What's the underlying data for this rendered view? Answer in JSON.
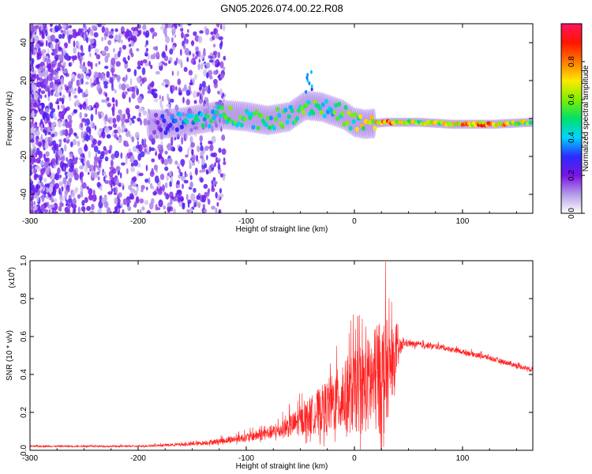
{
  "figure": {
    "title": "GN05.2026.074.00.22.R08"
  },
  "chart_data": [
    {
      "type": "heatmap",
      "name": "spectrogram",
      "xlabel": "Height of straight line (km)",
      "ylabel": "Frequency (Hz)",
      "xlim": [
        -300,
        165
      ],
      "ylim": [
        -50,
        50
      ],
      "xticks": [
        -300,
        -200,
        -100,
        0,
        100
      ],
      "yticks": [
        -40,
        -20,
        0,
        20,
        40
      ],
      "colorbar": {
        "label": "Normalized spectral amplitude",
        "range": [
          0,
          1
        ],
        "ticks": [
          "0.0",
          "0.2",
          "0.4",
          "0.6",
          "0.8"
        ],
        "colors": [
          "#ffffff",
          "#b49be8",
          "#7a14e6",
          "#2a2bff",
          "#00d4ff",
          "#00e06a",
          "#7ff000",
          "#ffe800",
          "#ff7a00",
          "#ff1400",
          "#ff1460"
        ]
      },
      "ridge": [
        {
          "x": -180,
          "f": -3,
          "a": 0.35
        },
        {
          "x": -160,
          "f": -2,
          "a": 0.45
        },
        {
          "x": -140,
          "f": 0,
          "a": 0.55
        },
        {
          "x": -120,
          "f": 2,
          "a": 0.6
        },
        {
          "x": -100,
          "f": 1,
          "a": 0.62
        },
        {
          "x": -80,
          "f": -1,
          "a": 0.6
        },
        {
          "x": -60,
          "f": 1,
          "a": 0.62
        },
        {
          "x": -45,
          "f": 7,
          "a": 0.65
        },
        {
          "x": -30,
          "f": 6,
          "a": 0.6
        },
        {
          "x": -10,
          "f": 2,
          "a": 0.6
        },
        {
          "x": 0,
          "f": -2,
          "a": 0.7
        },
        {
          "x": 10,
          "f": -3,
          "a": 0.8
        },
        {
          "x": 30,
          "f": -2,
          "a": 0.95
        },
        {
          "x": 60,
          "f": -2,
          "a": 0.7
        },
        {
          "x": 90,
          "f": -3,
          "a": 0.9
        },
        {
          "x": 130,
          "f": -3,
          "a": 0.95
        },
        {
          "x": 165,
          "f": -2,
          "a": 0.7
        }
      ]
    },
    {
      "type": "line",
      "name": "snr",
      "xlabel": "Height of straight line (km)",
      "ylabel": "SNR (10 * v/v)",
      "multiplier": "(x10",
      "multiplier_exp": "4",
      "xlim": [
        -300,
        165
      ],
      "ylim": [
        0,
        1.0
      ],
      "xticks": [
        -300,
        -200,
        -100,
        0,
        100
      ],
      "yticks": [
        "0.0",
        "0.2",
        "0.4",
        "0.6",
        "0.8",
        "1.0"
      ],
      "color": "#ff2020",
      "envelope": [
        {
          "x": -300,
          "base": 0.02,
          "amp": 0.01
        },
        {
          "x": -200,
          "base": 0.02,
          "amp": 0.01
        },
        {
          "x": -150,
          "base": 0.03,
          "amp": 0.02
        },
        {
          "x": -130,
          "base": 0.04,
          "amp": 0.03
        },
        {
          "x": -100,
          "base": 0.06,
          "amp": 0.05
        },
        {
          "x": -70,
          "base": 0.09,
          "amp": 0.09
        },
        {
          "x": -50,
          "base": 0.13,
          "amp": 0.17
        },
        {
          "x": -30,
          "base": 0.18,
          "amp": 0.28
        },
        {
          "x": -10,
          "base": 0.22,
          "amp": 0.42
        },
        {
          "x": 10,
          "base": 0.26,
          "amp": 0.55
        },
        {
          "x": 28,
          "base": 0.3,
          "amp": 0.7
        },
        {
          "x": 38,
          "base": 0.45,
          "amp": 0.25
        },
        {
          "x": 45,
          "base": 0.56,
          "amp": 0.04
        },
        {
          "x": 80,
          "base": 0.54,
          "amp": 0.03
        },
        {
          "x": 120,
          "base": 0.49,
          "amp": 0.03
        },
        {
          "x": 165,
          "base": 0.42,
          "amp": 0.03
        }
      ]
    }
  ]
}
